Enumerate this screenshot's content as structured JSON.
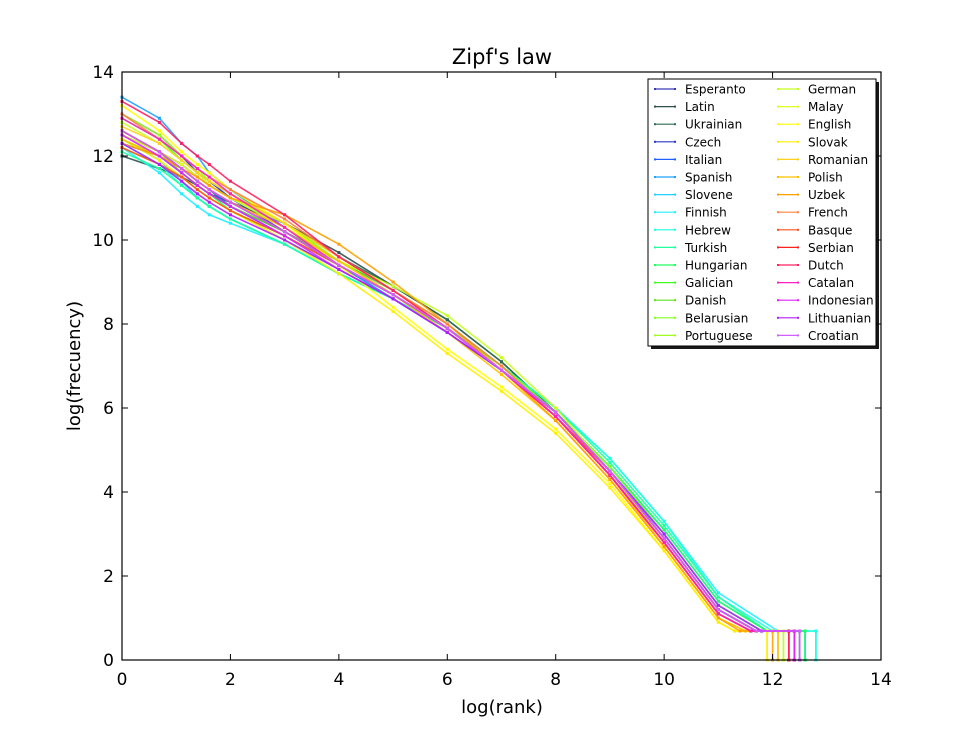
{
  "chart_data": {
    "type": "line",
    "title": "Zipf's law",
    "xlabel": "log(rank)",
    "ylabel": "log(frecuency)",
    "xlim": [
      0,
      14
    ],
    "ylim": [
      0,
      14
    ],
    "xticks": [
      "0",
      "2",
      "4",
      "6",
      "8",
      "10",
      "12",
      "14"
    ],
    "yticks": [
      "0",
      "2",
      "4",
      "6",
      "8",
      "10",
      "12",
      "14"
    ],
    "grid": false,
    "legend_position": "top-right",
    "x": [
      0,
      0.69,
      1.1,
      1.39,
      1.61,
      2,
      3,
      4,
      5,
      6,
      7,
      8,
      9,
      10,
      11
    ],
    "series": [
      {
        "name": "Esperanto",
        "color": "#3a3ab8",
        "y": [
          12.3,
          12.0,
          11.6,
          11.3,
          11.1,
          10.8,
          10.2,
          9.5,
          8.8,
          7.9,
          6.9,
          5.8,
          4.4,
          2.8,
          1.1
        ],
        "tail_x": [
          11.6,
          12.3
        ]
      },
      {
        "name": "Latin",
        "color": "#2f4f4f",
        "y": [
          12.0,
          11.7,
          11.5,
          11.3,
          11.1,
          10.9,
          10.4,
          9.7,
          8.9,
          8.1,
          7.1,
          5.9,
          4.5,
          2.9,
          1.2
        ],
        "tail_x": [
          11.7,
          12.4
        ]
      },
      {
        "name": "Ukrainian",
        "color": "#2e6b50",
        "y": [
          12.5,
          12.1,
          11.8,
          11.5,
          11.3,
          11.0,
          10.4,
          9.6,
          8.9,
          8.1,
          7.1,
          5.9,
          4.5,
          2.9,
          1.2
        ],
        "tail_x": [
          11.7,
          12.4
        ]
      },
      {
        "name": "Czech",
        "color": "#2838c8",
        "y": [
          13.0,
          12.5,
          12.0,
          11.6,
          11.4,
          11.0,
          10.2,
          9.4,
          8.7,
          7.9,
          6.9,
          5.9,
          4.5,
          2.9,
          1.2
        ],
        "tail_x": [
          11.7,
          12.5
        ]
      },
      {
        "name": "Italian",
        "color": "#2060ff",
        "y": [
          12.6,
          12.1,
          11.7,
          11.4,
          11.2,
          10.8,
          10.1,
          9.4,
          8.6,
          7.8,
          6.9,
          5.9,
          4.5,
          3.0,
          1.3
        ],
        "tail_x": [
          11.8,
          12.5
        ]
      },
      {
        "name": "Spanish",
        "color": "#20a0ff",
        "y": [
          13.4,
          12.9,
          12.3,
          12.0,
          11.6,
          11.2,
          10.3,
          9.4,
          8.6,
          7.8,
          6.9,
          5.9,
          4.6,
          3.0,
          1.3
        ],
        "tail_x": [
          11.8,
          12.6
        ]
      },
      {
        "name": "Slovene",
        "color": "#20d0ff",
        "y": [
          12.4,
          11.9,
          11.4,
          11.0,
          10.8,
          10.5,
          9.9,
          9.2,
          8.6,
          7.8,
          6.9,
          5.9,
          4.6,
          3.1,
          1.4
        ],
        "tail_x": [
          11.9,
          12.6
        ]
      },
      {
        "name": "Finnish",
        "color": "#20f0ff",
        "y": [
          12.2,
          11.6,
          11.1,
          10.8,
          10.6,
          10.4,
          9.9,
          9.2,
          8.6,
          7.9,
          7.0,
          6.0,
          4.8,
          3.3,
          1.6
        ],
        "tail_x": [
          12.1,
          12.8
        ]
      },
      {
        "name": "Hebrew",
        "color": "#20ffe0",
        "y": [
          12.3,
          11.8,
          11.3,
          11.0,
          10.8,
          10.5,
          9.9,
          9.2,
          8.6,
          7.9,
          7.0,
          6.0,
          4.8,
          3.3,
          1.5
        ],
        "tail_x": [
          12.0,
          12.8
        ]
      },
      {
        "name": "Turkish",
        "color": "#20ffa0",
        "y": [
          12.1,
          11.7,
          11.3,
          11.0,
          10.8,
          10.5,
          9.9,
          9.2,
          8.6,
          7.9,
          7.0,
          6.0,
          4.7,
          3.2,
          1.5
        ],
        "tail_x": [
          11.9,
          12.6
        ]
      },
      {
        "name": "Hungarian",
        "color": "#20ff60",
        "y": [
          12.4,
          12.0,
          11.6,
          11.3,
          11.1,
          10.7,
          10.0,
          9.3,
          8.6,
          7.8,
          6.9,
          5.9,
          4.6,
          3.1,
          1.4
        ],
        "tail_x": [
          11.9,
          12.6
        ]
      },
      {
        "name": "Galician",
        "color": "#40ff20",
        "y": [
          12.9,
          12.4,
          11.9,
          11.6,
          11.4,
          11.1,
          10.4,
          9.5,
          8.7,
          7.9,
          6.9,
          5.8,
          4.4,
          2.8,
          1.1
        ],
        "tail_x": [
          11.6,
          12.3
        ]
      },
      {
        "name": "Danish",
        "color": "#60e020",
        "y": [
          12.6,
          12.1,
          11.6,
          11.3,
          11.1,
          10.8,
          10.2,
          9.5,
          8.8,
          8.0,
          7.0,
          5.9,
          4.5,
          2.9,
          1.2
        ],
        "tail_x": [
          11.7,
          12.4
        ]
      },
      {
        "name": "Belarusian",
        "color": "#80ff20",
        "y": [
          12.2,
          11.8,
          11.5,
          11.2,
          11.0,
          10.7,
          10.1,
          9.4,
          8.7,
          7.9,
          7.0,
          5.9,
          4.6,
          3.0,
          1.3
        ],
        "tail_x": [
          11.8,
          12.5
        ]
      },
      {
        "name": "Portuguese",
        "color": "#a0ff20",
        "y": [
          13.0,
          12.5,
          12.0,
          11.7,
          11.4,
          11.1,
          10.4,
          9.5,
          8.7,
          7.9,
          6.9,
          5.8,
          4.4,
          2.8,
          1.1
        ],
        "tail_x": [
          11.6,
          12.2
        ]
      },
      {
        "name": "German",
        "color": "#c8ff20",
        "y": [
          12.8,
          12.3,
          11.9,
          11.6,
          11.3,
          11.0,
          10.3,
          9.5,
          8.9,
          8.2,
          7.2,
          6.0,
          4.5,
          2.8,
          1.1
        ],
        "tail_x": [
          11.6,
          12.2
        ]
      },
      {
        "name": "Malay",
        "color": "#e0ff20",
        "y": [
          12.5,
          12.1,
          11.8,
          11.5,
          11.3,
          11.0,
          10.4,
          9.6,
          8.8,
          7.9,
          6.9,
          5.8,
          4.4,
          2.8,
          1.1
        ],
        "tail_x": [
          11.6,
          12.3
        ]
      },
      {
        "name": "English",
        "color": "#ffff00",
        "y": [
          13.2,
          12.6,
          12.1,
          11.8,
          11.6,
          11.2,
          10.4,
          9.4,
          8.4,
          7.4,
          6.5,
          5.5,
          4.2,
          2.6,
          0.9
        ],
        "tail_x": [
          11.3,
          11.9
        ]
      },
      {
        "name": "Slovak",
        "color": "#ffee00",
        "y": [
          12.4,
          11.9,
          11.5,
          11.2,
          11.0,
          10.7,
          10.0,
          9.2,
          8.3,
          7.3,
          6.4,
          5.4,
          4.1,
          2.6,
          0.9
        ],
        "tail_x": [
          11.3,
          11.9
        ]
      },
      {
        "name": "Romanian",
        "color": "#ffd020",
        "y": [
          12.7,
          12.3,
          11.9,
          11.6,
          11.4,
          11.1,
          10.4,
          9.6,
          8.8,
          7.9,
          6.9,
          5.8,
          4.4,
          2.7,
          1.0
        ],
        "tail_x": [
          11.5,
          12.1
        ]
      },
      {
        "name": "Polish",
        "color": "#ffc000",
        "y": [
          12.4,
          12.0,
          11.7,
          11.4,
          11.2,
          10.9,
          10.3,
          9.5,
          8.7,
          7.8,
          6.8,
          5.7,
          4.3,
          2.7,
          1.0
        ],
        "tail_x": [
          11.5,
          12.1
        ]
      },
      {
        "name": "Uzbek",
        "color": "#ffa000",
        "y": [
          12.3,
          12.0,
          11.7,
          11.5,
          11.3,
          11.0,
          10.6,
          9.9,
          9.0,
          8.0,
          6.9,
          5.7,
          4.3,
          2.7,
          1.0
        ],
        "tail_x": [
          11.4,
          12.0
        ]
      },
      {
        "name": "French",
        "color": "#ff8040",
        "y": [
          13.0,
          12.4,
          12.0,
          11.7,
          11.5,
          11.2,
          10.5,
          9.6,
          8.8,
          8.0,
          7.0,
          5.8,
          4.4,
          2.8,
          1.1
        ],
        "tail_x": [
          11.6,
          12.3
        ]
      },
      {
        "name": "Basque",
        "color": "#ff5020",
        "y": [
          12.2,
          11.8,
          11.5,
          11.2,
          11.0,
          10.7,
          10.1,
          9.4,
          8.7,
          7.9,
          6.9,
          5.8,
          4.5,
          2.9,
          1.2
        ],
        "tail_x": [
          11.7,
          12.4
        ]
      },
      {
        "name": "Serbian",
        "color": "#ff2020",
        "y": [
          12.6,
          12.1,
          11.7,
          11.4,
          11.2,
          10.9,
          10.2,
          9.4,
          8.7,
          7.9,
          6.9,
          5.8,
          4.4,
          2.8,
          1.1
        ],
        "tail_x": [
          11.6,
          12.3
        ]
      },
      {
        "name": "Dutch",
        "color": "#ff2060",
        "y": [
          13.3,
          12.8,
          12.3,
          12.0,
          11.8,
          11.4,
          10.6,
          9.6,
          8.8,
          7.9,
          6.9,
          5.8,
          4.4,
          2.8,
          1.1
        ],
        "tail_x": [
          11.6,
          12.3
        ]
      },
      {
        "name": "Catalan",
        "color": "#ff20c0",
        "y": [
          12.9,
          12.4,
          12.0,
          11.7,
          11.5,
          11.1,
          10.3,
          9.4,
          8.7,
          7.9,
          6.9,
          5.8,
          4.4,
          2.8,
          1.1
        ],
        "tail_x": [
          11.6,
          12.4
        ]
      },
      {
        "name": "Indonesian",
        "color": "#e020ff",
        "y": [
          12.5,
          12.0,
          11.6,
          11.3,
          11.1,
          10.8,
          10.1,
          9.3,
          8.6,
          7.8,
          6.9,
          5.9,
          4.5,
          2.9,
          1.2
        ],
        "tail_x": [
          11.7,
          12.4
        ]
      },
      {
        "name": "Lithuanian",
        "color": "#b020ff",
        "y": [
          12.3,
          11.8,
          11.4,
          11.1,
          10.9,
          10.6,
          10.0,
          9.3,
          8.6,
          7.8,
          6.9,
          5.9,
          4.5,
          3.0,
          1.3
        ],
        "tail_x": [
          11.8,
          12.5
        ]
      },
      {
        "name": "Croatian",
        "color": "#d060ff",
        "y": [
          12.6,
          12.1,
          11.7,
          11.4,
          11.2,
          10.9,
          10.2,
          9.4,
          8.7,
          7.9,
          6.9,
          5.9,
          4.5,
          2.9,
          1.2
        ],
        "tail_x": [
          11.7,
          12.5
        ]
      }
    ]
  }
}
